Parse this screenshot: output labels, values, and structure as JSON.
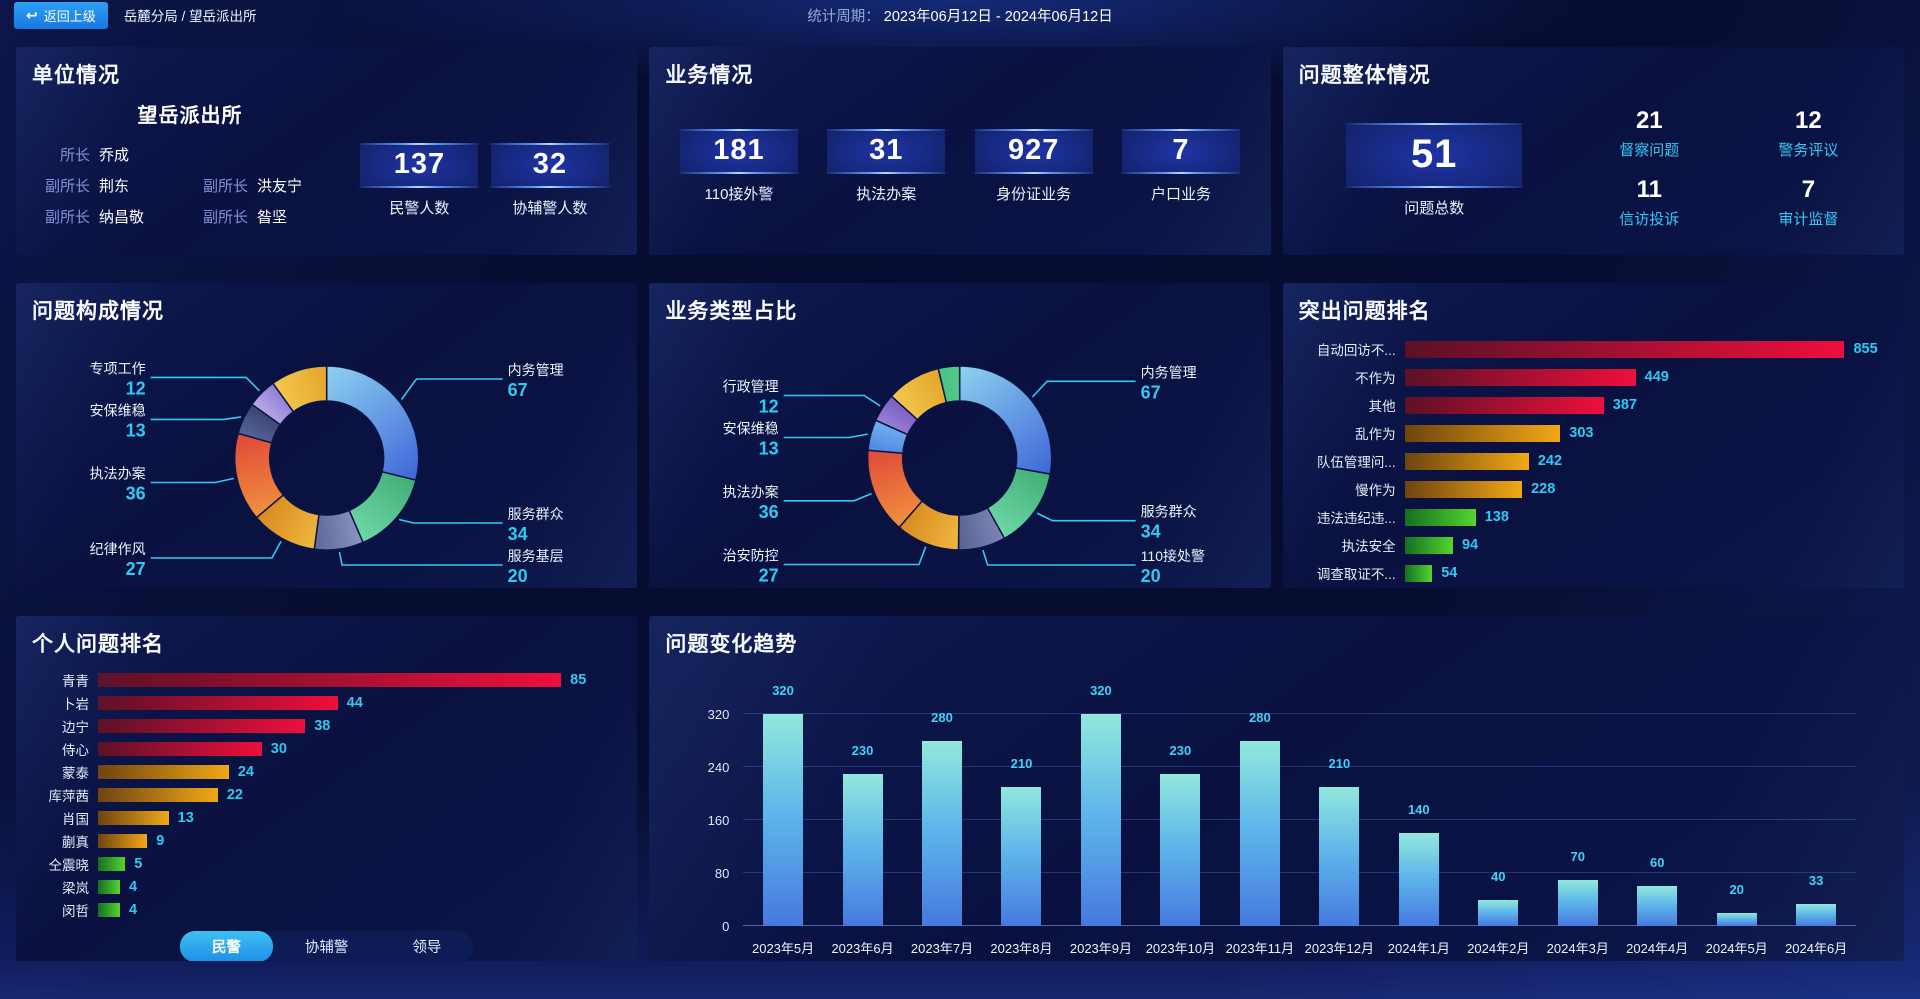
{
  "topbar": {
    "back_label": "返回上级",
    "breadcrumb": "岳麓分局 / 望岳派出所",
    "period_label": "统计周期：",
    "period_value": "2023年06月12日 - 2024年06月12日"
  },
  "colors": {
    "accent_cyan": "#35c8f5",
    "tier_high_red": "#ee0f3c",
    "tier_mid_amber": "#f2a815",
    "tier_low_green": "#52d62e",
    "trend_bar_top": "#92e8dc",
    "trend_bar_bottom": "#4679e0",
    "back_button_blue": "#1f8ef0"
  },
  "unit_panel": {
    "title": "单位情况",
    "station_name": "望岳派出所",
    "officers": [
      {
        "role": "所长",
        "name": "乔成"
      },
      {
        "role": "副所长",
        "name": "荆东"
      },
      {
        "role": "副所长",
        "name": "洪友宁"
      },
      {
        "role": "副所长",
        "name": "纳昌敬"
      },
      {
        "role": "副所长",
        "name": "昝坚"
      }
    ],
    "stats": [
      {
        "value": "137",
        "label": "民警人数"
      },
      {
        "value": "32",
        "label": "协辅警人数"
      }
    ]
  },
  "business_panel": {
    "title": "业务情况",
    "stats": [
      {
        "value": "181",
        "label": "110接外警"
      },
      {
        "value": "31",
        "label": "执法办案"
      },
      {
        "value": "927",
        "label": "身份证业务"
      },
      {
        "value": "7",
        "label": "户口业务"
      }
    ]
  },
  "problem_panel": {
    "title": "问题整体情况",
    "total": {
      "value": "51",
      "label": "问题总数"
    },
    "stats": [
      {
        "value": "21",
        "label": "督察问题"
      },
      {
        "value": "12",
        "label": "警务评议"
      },
      {
        "value": "11",
        "label": "信访投诉"
      },
      {
        "value": "7",
        "label": "审计监督"
      }
    ]
  },
  "chart_data": [
    {
      "id": "problem-composition",
      "type": "pie",
      "title": "问题构成情况",
      "legend_position": "callout-labels",
      "segments": [
        {
          "label": "内务管理",
          "value": 67,
          "colors": [
            "#8ed2f0",
            "#3e66d8"
          ]
        },
        {
          "label": "服务群众",
          "value": 34,
          "colors": [
            "#3fae74",
            "#6fd8a8"
          ]
        },
        {
          "label": "服务基层",
          "value": 20,
          "colors": [
            "#8a94c2",
            "#5d6694"
          ]
        },
        {
          "label": "纪律作风",
          "value": 27,
          "colors": [
            "#efb93f",
            "#d9881f"
          ]
        },
        {
          "label": "执法办案",
          "value": 36,
          "colors": [
            "#f0913f",
            "#e04838"
          ]
        },
        {
          "label": "安保维稳",
          "value": 13,
          "colors": [
            "#55639a",
            "#39456e"
          ]
        },
        {
          "label": "专项工作",
          "value": 12,
          "colors": [
            "#b9aae8",
            "#8f7ed6"
          ]
        },
        {
          "label": "",
          "value": 23,
          "colors": [
            "#f3c84d",
            "#e3a52b"
          ],
          "unlabeled_estimated": true
        }
      ]
    },
    {
      "id": "business-type",
      "type": "pie",
      "title": "业务类型占比",
      "legend_position": "callout-labels",
      "segments": [
        {
          "label": "内务管理",
          "value": 67,
          "colors": [
            "#8ed2f0",
            "#3e66d8"
          ]
        },
        {
          "label": "服务群众",
          "value": 34,
          "colors": [
            "#3fae74",
            "#6fd8a8"
          ]
        },
        {
          "label": "110接处警",
          "value": 20,
          "colors": [
            "#7d87b8",
            "#575f8e"
          ]
        },
        {
          "label": "治安防控",
          "value": 27,
          "colors": [
            "#efb93f",
            "#d9881f"
          ]
        },
        {
          "label": "执法办案",
          "value": 36,
          "colors": [
            "#f0913f",
            "#e04838"
          ]
        },
        {
          "label": "安保维稳",
          "value": 13,
          "colors": [
            "#4f86e0",
            "#6fb2f0"
          ]
        },
        {
          "label": "行政管理",
          "value": 12,
          "colors": [
            "#9a82d4",
            "#7a5ec4"
          ]
        },
        {
          "label": "",
          "value": 23,
          "colors": [
            "#f3c84d",
            "#e3a52b"
          ],
          "unlabeled_estimated": true
        },
        {
          "label": "",
          "value": 9,
          "colors": [
            "#4bbf82",
            "#52cc8e"
          ],
          "unlabeled_estimated": true
        }
      ]
    },
    {
      "id": "top-problems",
      "type": "bar",
      "orientation": "horizontal",
      "title": "突出问题排名",
      "categories": [
        "自动回访不...",
        "不作为",
        "其他",
        "乱作为",
        "队伍管理问...",
        "慢作为",
        "违法违纪违...",
        "执法安全",
        "调查取证不..."
      ],
      "values": [
        855,
        449,
        387,
        303,
        242,
        228,
        138,
        94,
        54
      ],
      "tiers": [
        "high",
        "high",
        "high",
        "mid",
        "mid",
        "mid",
        "low",
        "low",
        "low"
      ]
    },
    {
      "id": "personal-ranking",
      "type": "bar",
      "orientation": "horizontal",
      "title": "个人问题排名",
      "categories": [
        "青青",
        "卜岩",
        "边宁",
        "侍心",
        "蒙泰",
        "库萍茜",
        "肖国",
        "蒯真",
        "仝震晓",
        "梁岚",
        "闵哲"
      ],
      "values": [
        85,
        44,
        38,
        30,
        24,
        22,
        13,
        9,
        5,
        4,
        4
      ],
      "tiers": [
        "high",
        "high",
        "high",
        "high",
        "mid",
        "mid",
        "mid",
        "mid",
        "low",
        "low",
        "low"
      ],
      "tabs": [
        "民警",
        "协辅警",
        "领导"
      ],
      "active_tab": "民警"
    },
    {
      "id": "trend",
      "type": "bar",
      "title": "问题变化趋势",
      "categories": [
        "2023年5月",
        "2023年6月",
        "2023年7月",
        "2023年8月",
        "2023年9月",
        "2023年10月",
        "2023年11月",
        "2023年12月",
        "2024年1月",
        "2024年2月",
        "2024年3月",
        "2024年4月",
        "2024年5月",
        "2024年6月"
      ],
      "values": [
        320,
        230,
        280,
        210,
        320,
        230,
        280,
        210,
        140,
        40,
        70,
        60,
        20,
        33
      ],
      "xlabel": "",
      "ylabel": "",
      "ylim": [
        0,
        320
      ],
      "yticks": [
        0,
        80,
        160,
        240,
        320
      ],
      "grid": true
    }
  ]
}
